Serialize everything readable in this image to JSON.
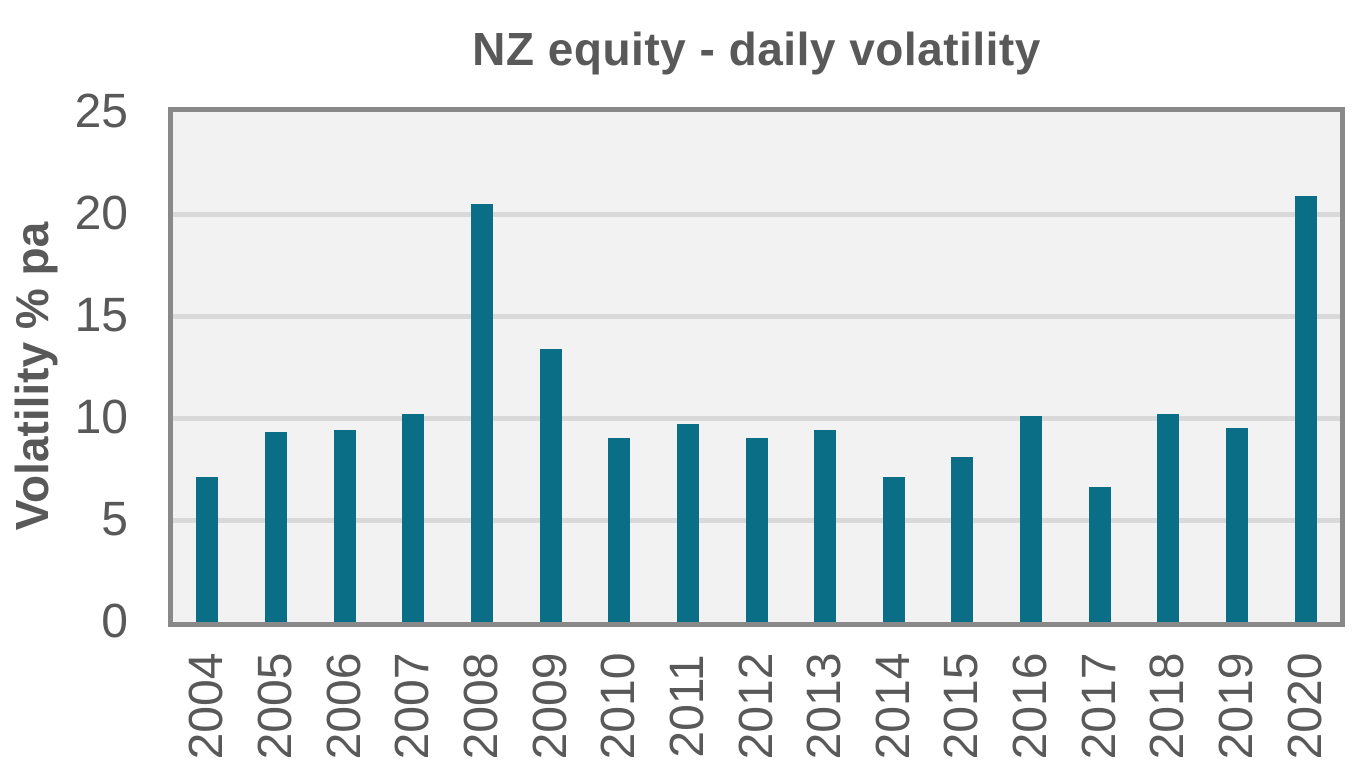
{
  "chart_data": {
    "type": "bar",
    "title": "NZ equity - daily volatility",
    "xlabel": "",
    "ylabel": "Volatility % pa",
    "categories": [
      "2004",
      "2005",
      "2006",
      "2007",
      "2008",
      "2009",
      "2010",
      "2011",
      "2012",
      "2013",
      "2014",
      "2015",
      "2016",
      "2017",
      "2018",
      "2019",
      "2020"
    ],
    "values": [
      7.1,
      9.3,
      9.4,
      10.2,
      20.5,
      13.4,
      9.0,
      9.7,
      9.0,
      9.4,
      7.1,
      8.1,
      10.1,
      6.6,
      10.2,
      9.5,
      20.9
    ],
    "ylim": [
      0,
      25
    ],
    "y_ticks": [
      0,
      5,
      10,
      15,
      20,
      25
    ],
    "grid": true,
    "legend_position": "none",
    "colors": {
      "bar": "#0A6E86",
      "plot_background": "#F2F2F2",
      "plot_border": "#898989",
      "gridline": "#D9D9D9",
      "text": "#595959"
    }
  }
}
